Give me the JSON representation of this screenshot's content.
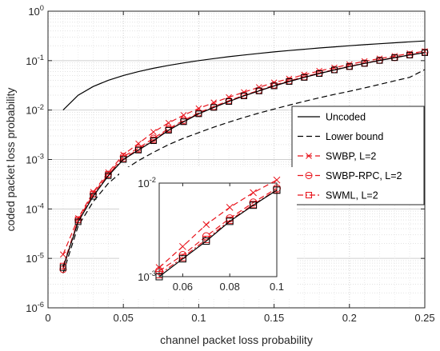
{
  "chart_data": {
    "type": "line",
    "title": "",
    "xlabel": "channel packet loss probability",
    "ylabel": "coded packet loss probability",
    "xlim": [
      0,
      0.25
    ],
    "ylim": [
      1e-06,
      1
    ],
    "yscale": "log",
    "grid": true,
    "legend_position": "right",
    "x_ticks": [
      0,
      0.05,
      0.1,
      0.15,
      0.2,
      0.25
    ],
    "x_tick_labels": [
      "0",
      "0.05",
      "0.1",
      "0.15",
      "0.2",
      "0.25"
    ],
    "y_ticks": [
      1e-06,
      1e-05,
      0.0001,
      0.001,
      0.01,
      0.1,
      1
    ],
    "y_tick_labels": [
      {
        "base": "10",
        "exp": "-6"
      },
      {
        "base": "10",
        "exp": "-5"
      },
      {
        "base": "10",
        "exp": "-4"
      },
      {
        "base": "10",
        "exp": "-3"
      },
      {
        "base": "10",
        "exp": "-2"
      },
      {
        "base": "10",
        "exp": "-1"
      },
      {
        "base": "10",
        "exp": "0"
      }
    ],
    "series": [
      {
        "name": "Uncoded",
        "color": "#000000",
        "dash": "solid",
        "marker": "none",
        "x": [
          0.01,
          0.02,
          0.03,
          0.04,
          0.05,
          0.06,
          0.07,
          0.08,
          0.09,
          0.1,
          0.11,
          0.12,
          0.13,
          0.14,
          0.15,
          0.16,
          0.17,
          0.18,
          0.19,
          0.2,
          0.21,
          0.22,
          0.23,
          0.24,
          0.25
        ],
        "y": [
          0.01,
          0.02,
          0.03,
          0.04,
          0.05,
          0.06,
          0.07,
          0.08,
          0.09,
          0.1,
          0.11,
          0.12,
          0.13,
          0.14,
          0.15,
          0.16,
          0.17,
          0.18,
          0.19,
          0.2,
          0.21,
          0.22,
          0.23,
          0.24,
          0.25
        ]
      },
      {
        "name": "Lower bound",
        "color": "#000000",
        "dash": "dashed",
        "marker": "none",
        "x": [
          0.01,
          0.02,
          0.03,
          0.04,
          0.05,
          0.06,
          0.07,
          0.08,
          0.09,
          0.1,
          0.11,
          0.12,
          0.13,
          0.14,
          0.15,
          0.16,
          0.17,
          0.18,
          0.19,
          0.2,
          0.21,
          0.22,
          0.23,
          0.24,
          0.25
        ],
        "y": [
          5e-06,
          4.5e-05,
          0.00014,
          0.00033,
          0.0006,
          0.00095,
          0.0014,
          0.002,
          0.0027,
          0.0035,
          0.0045,
          0.0057,
          0.0071,
          0.0087,
          0.0105,
          0.0126,
          0.015,
          0.0177,
          0.0207,
          0.024,
          0.028,
          0.033,
          0.039,
          0.046,
          0.066
        ]
      },
      {
        "name": "SWBP, L=2",
        "color": "#e8141c",
        "dash": "dashed",
        "marker": "x",
        "x": [
          0.01,
          0.02,
          0.03,
          0.04,
          0.05,
          0.06,
          0.07,
          0.08,
          0.09,
          0.1,
          0.11,
          0.12,
          0.13,
          0.14,
          0.15,
          0.16,
          0.17,
          0.18,
          0.19,
          0.2,
          0.21,
          0.22,
          0.23,
          0.24,
          0.25
        ],
        "y": [
          1.2e-05,
          6.5e-05,
          0.00022,
          0.00055,
          0.00125,
          0.0021,
          0.0036,
          0.0055,
          0.0079,
          0.0108,
          0.0142,
          0.0182,
          0.023,
          0.029,
          0.036,
          0.043,
          0.052,
          0.062,
          0.072,
          0.084,
          0.097,
          0.11,
          0.124,
          0.14,
          0.155
        ]
      },
      {
        "name": "SWBP-RPC, L=2",
        "color": "#e8141c",
        "dash": "dashed",
        "marker": "o",
        "x": [
          0.01,
          0.02,
          0.03,
          0.04,
          0.05,
          0.06,
          0.07,
          0.08,
          0.09,
          0.1,
          0.11,
          0.12,
          0.13,
          0.14,
          0.15,
          0.16,
          0.17,
          0.18,
          0.19,
          0.2,
          0.21,
          0.22,
          0.23,
          0.24,
          0.25
        ],
        "y": [
          6e-06,
          6e-05,
          0.0002,
          0.0005,
          0.00115,
          0.0017,
          0.0027,
          0.0042,
          0.0062,
          0.0088,
          0.0118,
          0.0155,
          0.02,
          0.025,
          0.032,
          0.039,
          0.047,
          0.056,
          0.066,
          0.077,
          0.089,
          0.102,
          0.116,
          0.131,
          0.148
        ]
      },
      {
        "name": "SWML, L=2",
        "color": "#e8141c",
        "dash": "dashdot",
        "marker": "s",
        "x": [
          0.01,
          0.02,
          0.03,
          0.04,
          0.05,
          0.06,
          0.07,
          0.08,
          0.09,
          0.1,
          0.11,
          0.12,
          0.13,
          0.14,
          0.15,
          0.16,
          0.17,
          0.18,
          0.19,
          0.2,
          0.21,
          0.22,
          0.23,
          0.24,
          0.25
        ],
        "y": [
          7e-06,
          6e-05,
          0.0002,
          0.0005,
          0.00105,
          0.0016,
          0.0025,
          0.004,
          0.0059,
          0.0085,
          0.0114,
          0.015,
          0.0195,
          0.0245,
          0.031,
          0.038,
          0.046,
          0.055,
          0.065,
          0.076,
          0.088,
          0.101,
          0.115,
          0.13,
          0.146
        ]
      },
      {
        "name": "",
        "color": "#000000",
        "dash": "solid",
        "marker": "s",
        "x": [
          0.01,
          0.02,
          0.03,
          0.04,
          0.05,
          0.06,
          0.07,
          0.08,
          0.09,
          0.1,
          0.11,
          0.12,
          0.13,
          0.14,
          0.15,
          0.16,
          0.17,
          0.18,
          0.19,
          0.2,
          0.21,
          0.22,
          0.23,
          0.24,
          0.25
        ],
        "y": [
          6.5e-06,
          5.5e-05,
          0.00018,
          0.00047,
          0.001,
          0.00155,
          0.0024,
          0.0039,
          0.0058,
          0.0084,
          0.0113,
          0.0149,
          0.0194,
          0.0244,
          0.0308,
          0.0378,
          0.0458,
          0.0548,
          0.0648,
          0.0758,
          0.0878,
          0.1008,
          0.1148,
          0.1298,
          0.145
        ]
      }
    ],
    "inset": {
      "xlim": [
        0.05,
        0.1
      ],
      "ylim": [
        0.001,
        0.01
      ],
      "yscale": "log",
      "grid": false,
      "x_ticks": [
        0.06,
        0.08,
        0.1
      ],
      "x_tick_labels": [
        "0.06",
        "0.08",
        "0.1"
      ],
      "y_ticks": [
        0.001,
        0.01
      ],
      "y_tick_labels": [
        {
          "base": "10",
          "exp": "-3"
        },
        {
          "base": "10",
          "exp": "-2"
        }
      ],
      "series": [
        {
          "color": "#e8141c",
          "dash": "dashed",
          "marker": "x",
          "x": [
            0.05,
            0.06,
            0.07,
            0.08,
            0.09,
            0.1
          ],
          "y": [
            0.00125,
            0.0021,
            0.0036,
            0.0055,
            0.0079,
            0.0108
          ]
        },
        {
          "color": "#e8141c",
          "dash": "dashed",
          "marker": "o",
          "x": [
            0.05,
            0.06,
            0.07,
            0.08,
            0.09,
            0.1
          ],
          "y": [
            0.00115,
            0.0017,
            0.0027,
            0.0042,
            0.0062,
            0.0088
          ]
        },
        {
          "color": "#e8141c",
          "dash": "dashdot",
          "marker": "s",
          "x": [
            0.05,
            0.06,
            0.07,
            0.08,
            0.09,
            0.1
          ],
          "y": [
            0.00105,
            0.0016,
            0.0025,
            0.004,
            0.0059,
            0.0085
          ]
        },
        {
          "color": "#000000",
          "dash": "solid",
          "marker": "s",
          "x": [
            0.05,
            0.06,
            0.07,
            0.08,
            0.09,
            0.1
          ],
          "y": [
            0.001,
            0.00155,
            0.0024,
            0.0039,
            0.0058,
            0.0084
          ]
        }
      ]
    }
  }
}
